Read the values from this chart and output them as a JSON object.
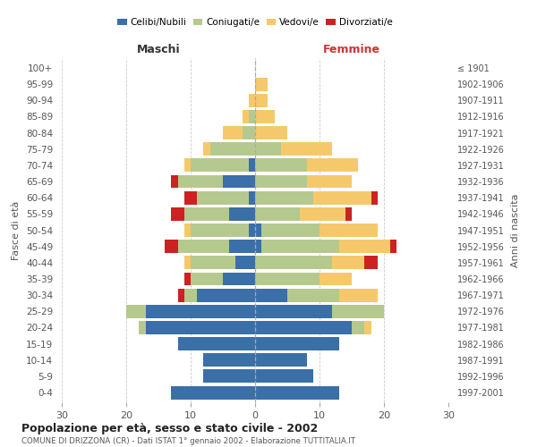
{
  "age_groups": [
    "0-4",
    "5-9",
    "10-14",
    "15-19",
    "20-24",
    "25-29",
    "30-34",
    "35-39",
    "40-44",
    "45-49",
    "50-54",
    "55-59",
    "60-64",
    "65-69",
    "70-74",
    "75-79",
    "80-84",
    "85-89",
    "90-94",
    "95-99",
    "100+"
  ],
  "birth_years": [
    "1997-2001",
    "1992-1996",
    "1987-1991",
    "1982-1986",
    "1977-1981",
    "1972-1976",
    "1967-1971",
    "1962-1966",
    "1957-1961",
    "1952-1956",
    "1947-1951",
    "1942-1946",
    "1937-1941",
    "1932-1936",
    "1927-1931",
    "1922-1926",
    "1917-1921",
    "1912-1916",
    "1907-1911",
    "1902-1906",
    "≤ 1901"
  ],
  "maschi": {
    "celibi": [
      13,
      8,
      8,
      12,
      17,
      17,
      9,
      5,
      3,
      4,
      1,
      4,
      1,
      5,
      1,
      0,
      0,
      0,
      0,
      0,
      0
    ],
    "coniugati": [
      0,
      0,
      0,
      0,
      1,
      3,
      2,
      5,
      7,
      8,
      9,
      7,
      8,
      7,
      9,
      7,
      2,
      1,
      0,
      0,
      0
    ],
    "vedovi": [
      0,
      0,
      0,
      0,
      0,
      0,
      0,
      0,
      1,
      0,
      1,
      0,
      0,
      0,
      1,
      1,
      3,
      1,
      1,
      0,
      0
    ],
    "divorziati": [
      0,
      0,
      0,
      0,
      0,
      0,
      1,
      1,
      0,
      2,
      0,
      2,
      2,
      1,
      0,
      0,
      0,
      0,
      0,
      0,
      0
    ]
  },
  "femmine": {
    "nubili": [
      13,
      9,
      8,
      13,
      15,
      12,
      5,
      0,
      0,
      1,
      1,
      0,
      0,
      0,
      0,
      0,
      0,
      0,
      0,
      0,
      0
    ],
    "coniugate": [
      0,
      0,
      0,
      0,
      2,
      8,
      8,
      10,
      12,
      12,
      9,
      7,
      9,
      8,
      8,
      4,
      0,
      0,
      0,
      0,
      0
    ],
    "vedove": [
      0,
      0,
      0,
      0,
      1,
      0,
      6,
      5,
      5,
      8,
      9,
      7,
      9,
      7,
      8,
      8,
      5,
      3,
      2,
      2,
      0
    ],
    "divorziate": [
      0,
      0,
      0,
      0,
      0,
      0,
      0,
      0,
      2,
      1,
      0,
      1,
      1,
      0,
      0,
      0,
      0,
      0,
      0,
      0,
      0
    ]
  },
  "colors": {
    "celibi_nubili": "#3a6fa8",
    "coniugati": "#b5c98e",
    "vedovi": "#f5c96b",
    "divorziati": "#cc2222"
  },
  "title": "Popolazione per età, sesso e stato civile - 2002",
  "subtitle": "COMUNE DI DRIZZONA (CR) - Dati ISTAT 1° gennaio 2002 - Elaborazione TUTTITALIA.IT",
  "xlabel_left": "Maschi",
  "xlabel_right": "Femmine",
  "ylabel_left": "Fasce di età",
  "ylabel_right": "Anni di nascita",
  "xlim": 30,
  "legend_labels": [
    "Celibi/Nubili",
    "Coniugati/e",
    "Vedovi/e",
    "Divorziati/e"
  ],
  "background_color": "#ffffff",
  "grid_color": "#cccccc"
}
